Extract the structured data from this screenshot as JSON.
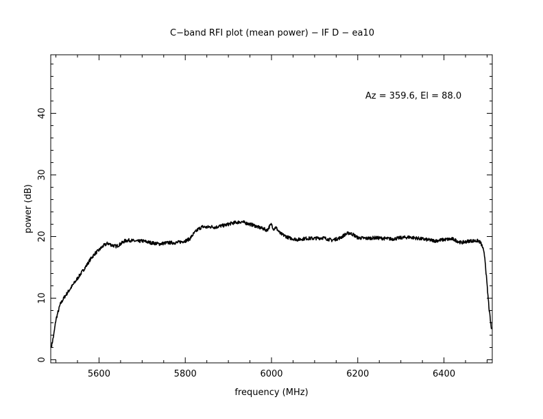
{
  "chart_data": {
    "type": "line",
    "title": "C−band RFI plot (mean power) − IF D − ea10",
    "xlabel": "frequency (MHz)",
    "ylabel": "power (dB)",
    "annotation": "Az = 359.6, El = 88.0",
    "xlim": [
      5488,
      6512
    ],
    "ylim": [
      -0.5,
      49.5
    ],
    "x_ticks": [
      5600,
      5800,
      6000,
      6200,
      6400
    ],
    "y_ticks": [
      0,
      10,
      20,
      30,
      40
    ],
    "grid": false,
    "line_color": "#000000",
    "series": [
      {
        "x": [
          5490,
          5495,
          5500,
          5510,
          5520,
          5530,
          5540,
          5550,
          5560,
          5570,
          5580,
          5590,
          5600,
          5610,
          5620,
          5630,
          5640,
          5650,
          5660,
          5670,
          5680,
          5690,
          5700,
          5720,
          5740,
          5760,
          5780,
          5800,
          5810,
          5820,
          5830,
          5840,
          5850,
          5860,
          5870,
          5880,
          5890,
          5900,
          5910,
          5920,
          5930,
          5940,
          5950,
          5960,
          5970,
          5980,
          5990,
          5995,
          6000,
          6005,
          6010,
          6020,
          6040,
          6060,
          6080,
          6100,
          6120,
          6140,
          6160,
          6170,
          6180,
          6190,
          6200,
          6220,
          6240,
          6260,
          6280,
          6300,
          6320,
          6340,
          6360,
          6380,
          6400,
          6420,
          6440,
          6460,
          6480,
          6485,
          6490,
          6495,
          6500,
          6505,
          6510
        ],
        "y": [
          2.3,
          4.0,
          6.5,
          9.0,
          10.2,
          11.2,
          12.2,
          13.2,
          14.2,
          15.2,
          16.3,
          17.2,
          17.8,
          18.5,
          18.9,
          18.6,
          18.4,
          18.8,
          19.3,
          19.4,
          19.3,
          19.2,
          19.3,
          19.0,
          18.8,
          19.0,
          19.0,
          19.3,
          19.6,
          20.5,
          21.2,
          21.6,
          21.5,
          21.6,
          21.5,
          21.7,
          21.8,
          22.0,
          22.2,
          22.3,
          22.4,
          22.2,
          22.0,
          21.8,
          21.5,
          21.3,
          21.0,
          21.6,
          22.0,
          21.2,
          21.5,
          20.5,
          19.8,
          19.5,
          19.7,
          19.7,
          19.8,
          19.4,
          19.8,
          20.3,
          20.6,
          20.3,
          19.8,
          19.7,
          19.8,
          19.7,
          19.6,
          19.8,
          19.9,
          19.7,
          19.5,
          19.3,
          19.5,
          19.6,
          19.0,
          19.3,
          19.3,
          19.0,
          18.2,
          16.5,
          12.0,
          8.0,
          5.0
        ]
      }
    ]
  }
}
